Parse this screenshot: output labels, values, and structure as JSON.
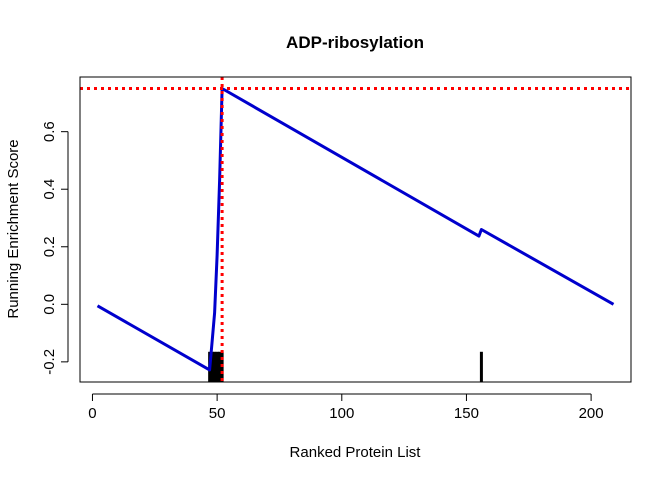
{
  "chart_data": {
    "type": "line",
    "title": "ADP-ribosylation",
    "xlabel": "Ranked Protein List",
    "ylabel": "Running Enrichment Score",
    "xlim": [
      -5,
      216
    ],
    "ylim": [
      -0.27,
      0.79
    ],
    "x_ticks": [
      0,
      50,
      100,
      150,
      200
    ],
    "x_tick_labels": [
      "0",
      "50",
      "100",
      "150",
      "200"
    ],
    "y_ticks": [
      -0.2,
      0.0,
      0.2,
      0.4,
      0.6
    ],
    "y_tick_labels": [
      "-0.2",
      "0.0",
      "0.2",
      "0.4",
      "0.6"
    ],
    "grid": false,
    "series": [
      {
        "color": "#0000CD",
        "x": [
          2,
          47,
          48,
          49,
          50,
          51,
          52,
          155,
          156,
          209
        ],
        "y": [
          -0.005,
          -0.228,
          -0.13,
          -0.03,
          0.17,
          0.43,
          0.75,
          0.237,
          0.26,
          0.0
        ]
      }
    ],
    "reference_lines": {
      "color": "#FF0000",
      "style": "dotted",
      "horizontal_y": 0.75,
      "vertical_x": 52
    },
    "hit_marks": {
      "color": "#000000",
      "positions": [
        47,
        48,
        49,
        50,
        51,
        52,
        156
      ],
      "y_bottom": -0.27,
      "y_top": -0.165
    }
  }
}
